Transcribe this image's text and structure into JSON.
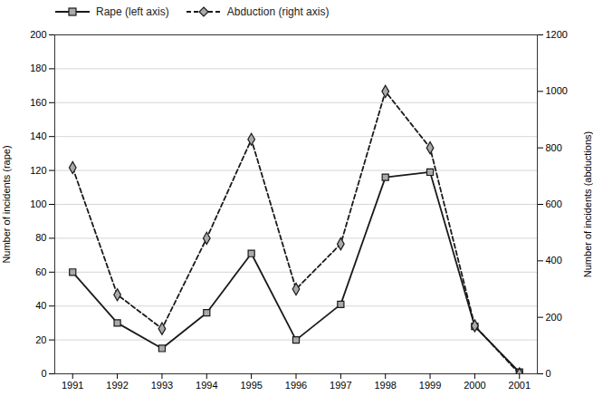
{
  "chart_data": {
    "type": "line",
    "x": [
      1991,
      1992,
      1993,
      1994,
      1995,
      1996,
      1997,
      1998,
      1999,
      2000,
      2001
    ],
    "xlim": [
      1990.6,
      2001.4
    ],
    "xticks": [
      1991,
      1992,
      1993,
      1994,
      1995,
      1996,
      1997,
      1998,
      1999,
      2000,
      2001
    ],
    "series": [
      {
        "name": "Rape (left axis)",
        "color": "#1a1a1a",
        "marker": "square",
        "line_style": "solid",
        "values": [
          60,
          30,
          15,
          36,
          71,
          20,
          41,
          116,
          119,
          28,
          1
        ]
      },
      {
        "name": "Abduction (right axis)",
        "color": "#1a1a1a",
        "marker": "diamond",
        "line_style": "dashed",
        "axis": "y2",
        "values": [
          730,
          280,
          160,
          480,
          830,
          300,
          460,
          1000,
          800,
          170,
          0
        ]
      }
    ],
    "ylabel": "Number of incidents (rape)",
    "y2label": "Number of incidents (abductions)",
    "ylim": [
      0,
      200
    ],
    "yticks": [
      0,
      20,
      40,
      60,
      80,
      100,
      120,
      140,
      160,
      180,
      200
    ],
    "y2lim": [
      0,
      1200
    ],
    "y2ticks": [
      0,
      200,
      400,
      600,
      800,
      1000,
      1200
    ],
    "grid": true,
    "legend": "upper left"
  }
}
